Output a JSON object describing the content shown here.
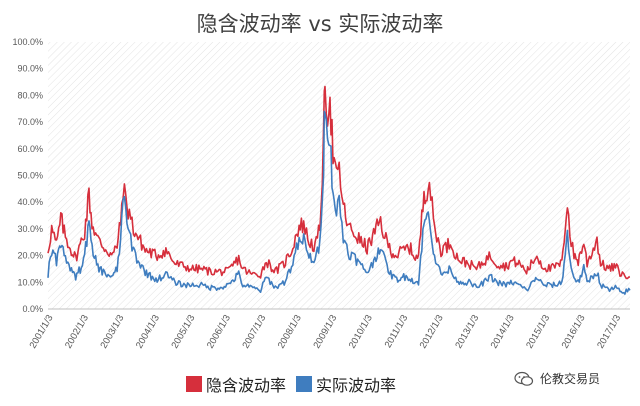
{
  "chart_data": {
    "type": "line",
    "title": "隐含波动率 vs 实际波动率",
    "xlabel": "",
    "ylabel": "",
    "ylim": [
      0,
      1.0
    ],
    "grid": "hatched background",
    "legend_position": "bottom",
    "y_ticks": [
      "0.0%",
      "10.0%",
      "20.0%",
      "30.0%",
      "40.0%",
      "50.0%",
      "60.0%",
      "70.0%",
      "80.0%",
      "90.0%",
      "100.0%"
    ],
    "x_ticks": [
      "2001/1/3",
      "2002/1/3",
      "2003/1/3",
      "2004/1/3",
      "2005/1/3",
      "2006/1/3",
      "2007/1/3",
      "2008/1/3",
      "2009/1/3",
      "2010/1/3",
      "2011/1/3",
      "2012/1/3",
      "2013/1/3",
      "2014/1/3",
      "2015/1/3",
      "2016/1/3",
      "2017/1/3"
    ],
    "x_range": [
      "2001-01-03",
      "2017-05-31"
    ],
    "series": [
      {
        "name": "隐含波动率",
        "color": "#d62f3c",
        "points": [
          [
            "2001-01-03",
            0.22
          ],
          [
            "2001-02-10",
            0.3
          ],
          [
            "2001-04-01",
            0.24
          ],
          [
            "2001-05-15",
            0.34
          ],
          [
            "2001-07-01",
            0.27
          ],
          [
            "2001-09-01",
            0.22
          ],
          [
            "2001-10-15",
            0.19
          ],
          [
            "2001-12-01",
            0.24
          ],
          [
            "2002-01-15",
            0.29
          ],
          [
            "2002-03-01",
            0.43
          ],
          [
            "2002-04-01",
            0.32
          ],
          [
            "2002-06-01",
            0.26
          ],
          [
            "2002-07-15",
            0.24
          ],
          [
            "2002-09-01",
            0.22
          ],
          [
            "2002-11-01",
            0.2
          ],
          [
            "2002-12-15",
            0.24
          ],
          [
            "2003-01-20",
            0.32
          ],
          [
            "2003-02-15",
            0.46
          ],
          [
            "2003-03-15",
            0.4
          ],
          [
            "2003-04-20",
            0.36
          ],
          [
            "2003-06-01",
            0.3
          ],
          [
            "2003-08-01",
            0.26
          ],
          [
            "2003-10-01",
            0.22
          ],
          [
            "2003-12-01",
            0.21
          ],
          [
            "2004-02-01",
            0.2
          ],
          [
            "2004-05-01",
            0.22
          ],
          [
            "2004-08-01",
            0.17
          ],
          [
            "2004-11-01",
            0.16
          ],
          [
            "2005-02-01",
            0.15
          ],
          [
            "2005-05-01",
            0.15
          ],
          [
            "2005-08-01",
            0.14
          ],
          [
            "2005-11-01",
            0.14
          ],
          [
            "2006-02-01",
            0.14
          ],
          [
            "2006-05-20",
            0.19
          ],
          [
            "2006-07-01",
            0.15
          ],
          [
            "2006-10-01",
            0.13
          ],
          [
            "2007-01-01",
            0.13
          ],
          [
            "2007-03-01",
            0.18
          ],
          [
            "2007-06-01",
            0.14
          ],
          [
            "2007-09-01",
            0.17
          ],
          [
            "2007-11-15",
            0.22
          ],
          [
            "2008-01-20",
            0.3
          ],
          [
            "2008-03-20",
            0.32
          ],
          [
            "2008-05-01",
            0.26
          ],
          [
            "2008-07-15",
            0.23
          ],
          [
            "2008-09-01",
            0.3
          ],
          [
            "2008-10-10",
            0.62
          ],
          [
            "2008-10-25",
            0.86
          ],
          [
            "2008-11-20",
            0.75
          ],
          [
            "2008-12-15",
            0.8
          ],
          [
            "2009-01-15",
            0.58
          ],
          [
            "2009-02-20",
            0.48
          ],
          [
            "2009-03-20",
            0.52
          ],
          [
            "2009-05-01",
            0.38
          ],
          [
            "2009-07-01",
            0.3
          ],
          [
            "2009-09-01",
            0.28
          ],
          [
            "2009-11-01",
            0.25
          ],
          [
            "2010-01-01",
            0.23
          ],
          [
            "2010-02-15",
            0.26
          ],
          [
            "2010-05-20",
            0.33
          ],
          [
            "2010-07-01",
            0.27
          ],
          [
            "2010-09-01",
            0.22
          ],
          [
            "2010-11-01",
            0.2
          ],
          [
            "2011-01-01",
            0.22
          ],
          [
            "2011-03-15",
            0.23
          ],
          [
            "2011-05-01",
            0.2
          ],
          [
            "2011-06-15",
            0.19
          ],
          [
            "2011-08-10",
            0.44
          ],
          [
            "2011-09-10",
            0.45
          ],
          [
            "2011-10-05",
            0.48
          ],
          [
            "2011-11-15",
            0.33
          ],
          [
            "2011-12-20",
            0.27
          ],
          [
            "2012-02-01",
            0.22
          ],
          [
            "2012-05-20",
            0.25
          ],
          [
            "2012-07-01",
            0.2
          ],
          [
            "2012-09-01",
            0.18
          ],
          [
            "2012-11-15",
            0.17
          ],
          [
            "2013-02-01",
            0.15
          ],
          [
            "2013-04-20",
            0.18
          ],
          [
            "2013-06-25",
            0.2
          ],
          [
            "2013-09-01",
            0.17
          ],
          [
            "2013-12-01",
            0.16
          ],
          [
            "2014-02-01",
            0.18
          ],
          [
            "2014-04-15",
            0.17
          ],
          [
            "2014-07-01",
            0.14
          ],
          [
            "2014-10-15",
            0.2
          ],
          [
            "2014-12-15",
            0.16
          ],
          [
            "2015-03-01",
            0.15
          ],
          [
            "2015-05-01",
            0.16
          ],
          [
            "2015-06-30",
            0.17
          ],
          [
            "2015-08-25",
            0.41
          ],
          [
            "2015-09-20",
            0.28
          ],
          [
            "2015-11-01",
            0.2
          ],
          [
            "2015-12-15",
            0.18
          ],
          [
            "2016-02-10",
            0.25
          ],
          [
            "2016-03-15",
            0.17
          ],
          [
            "2016-06-25",
            0.26
          ],
          [
            "2016-08-01",
            0.17
          ],
          [
            "2016-11-01",
            0.15
          ],
          [
            "2017-01-01",
            0.16
          ],
          [
            "2017-03-01",
            0.13
          ],
          [
            "2017-05-31",
            0.12
          ]
        ]
      },
      {
        "name": "实际波动率",
        "color": "#3f7dbf",
        "points": [
          [
            "2001-01-03",
            0.13
          ],
          [
            "2001-02-10",
            0.22
          ],
          [
            "2001-04-01",
            0.18
          ],
          [
            "2001-05-15",
            0.24
          ],
          [
            "2001-07-01",
            0.19
          ],
          [
            "2001-09-01",
            0.14
          ],
          [
            "2001-10-15",
            0.12
          ],
          [
            "2001-12-01",
            0.15
          ],
          [
            "2002-01-15",
            0.2
          ],
          [
            "2002-03-01",
            0.32
          ],
          [
            "2002-04-01",
            0.22
          ],
          [
            "2002-06-01",
            0.16
          ],
          [
            "2002-07-15",
            0.14
          ],
          [
            "2002-09-01",
            0.13
          ],
          [
            "2002-11-01",
            0.12
          ],
          [
            "2002-12-15",
            0.15
          ],
          [
            "2003-01-20",
            0.25
          ],
          [
            "2003-02-15",
            0.45
          ],
          [
            "2003-03-15",
            0.34
          ],
          [
            "2003-04-20",
            0.28
          ],
          [
            "2003-06-01",
            0.22
          ],
          [
            "2003-08-01",
            0.17
          ],
          [
            "2003-10-01",
            0.14
          ],
          [
            "2003-12-01",
            0.12
          ],
          [
            "2004-02-01",
            0.11
          ],
          [
            "2004-05-01",
            0.13
          ],
          [
            "2004-08-01",
            0.1
          ],
          [
            "2004-11-01",
            0.09
          ],
          [
            "2005-02-01",
            0.09
          ],
          [
            "2005-05-01",
            0.09
          ],
          [
            "2005-08-01",
            0.08
          ],
          [
            "2005-11-01",
            0.08
          ],
          [
            "2006-02-01",
            0.09
          ],
          [
            "2006-05-20",
            0.13
          ],
          [
            "2006-07-01",
            0.09
          ],
          [
            "2006-10-01",
            0.08
          ],
          [
            "2007-01-01",
            0.07
          ],
          [
            "2007-03-01",
            0.12
          ],
          [
            "2007-06-01",
            0.08
          ],
          [
            "2007-09-01",
            0.1
          ],
          [
            "2007-11-15",
            0.16
          ],
          [
            "2008-01-20",
            0.24
          ],
          [
            "2008-03-20",
            0.26
          ],
          [
            "2008-05-01",
            0.2
          ],
          [
            "2008-07-15",
            0.18
          ],
          [
            "2008-09-01",
            0.24
          ],
          [
            "2008-10-10",
            0.55
          ],
          [
            "2008-10-25",
            0.82
          ],
          [
            "2008-11-20",
            0.7
          ],
          [
            "2008-12-15",
            0.62
          ],
          [
            "2009-01-15",
            0.45
          ],
          [
            "2009-02-20",
            0.36
          ],
          [
            "2009-03-20",
            0.4
          ],
          [
            "2009-05-01",
            0.27
          ],
          [
            "2009-07-01",
            0.21
          ],
          [
            "2009-09-01",
            0.19
          ],
          [
            "2009-11-01",
            0.16
          ],
          [
            "2010-01-01",
            0.14
          ],
          [
            "2010-02-15",
            0.16
          ],
          [
            "2010-05-20",
            0.24
          ],
          [
            "2010-07-01",
            0.18
          ],
          [
            "2010-09-01",
            0.13
          ],
          [
            "2010-11-01",
            0.11
          ],
          [
            "2011-01-01",
            0.12
          ],
          [
            "2011-03-15",
            0.12
          ],
          [
            "2011-05-01",
            0.1
          ],
          [
            "2011-06-15",
            0.1
          ],
          [
            "2011-08-10",
            0.32
          ],
          [
            "2011-09-10",
            0.34
          ],
          [
            "2011-10-05",
            0.36
          ],
          [
            "2011-11-15",
            0.22
          ],
          [
            "2011-12-20",
            0.17
          ],
          [
            "2012-02-01",
            0.13
          ],
          [
            "2012-05-20",
            0.15
          ],
          [
            "2012-07-01",
            0.11
          ],
          [
            "2012-09-01",
            0.1
          ],
          [
            "2012-11-15",
            0.1
          ],
          [
            "2013-02-01",
            0.08
          ],
          [
            "2013-04-20",
            0.1
          ],
          [
            "2013-06-25",
            0.12
          ],
          [
            "2013-09-01",
            0.1
          ],
          [
            "2013-12-01",
            0.09
          ],
          [
            "2014-02-01",
            0.1
          ],
          [
            "2014-04-15",
            0.09
          ],
          [
            "2014-07-01",
            0.07
          ],
          [
            "2014-10-15",
            0.12
          ],
          [
            "2014-12-15",
            0.09
          ],
          [
            "2015-03-01",
            0.09
          ],
          [
            "2015-05-01",
            0.09
          ],
          [
            "2015-06-30",
            0.1
          ],
          [
            "2015-08-25",
            0.28
          ],
          [
            "2015-09-20",
            0.18
          ],
          [
            "2015-11-01",
            0.12
          ],
          [
            "2015-12-15",
            0.1
          ],
          [
            "2016-02-10",
            0.15
          ],
          [
            "2016-03-15",
            0.1
          ],
          [
            "2016-06-25",
            0.14
          ],
          [
            "2016-08-01",
            0.09
          ],
          [
            "2016-11-01",
            0.07
          ],
          [
            "2017-01-01",
            0.08
          ],
          [
            "2017-03-01",
            0.06
          ],
          [
            "2017-05-31",
            0.07
          ]
        ]
      }
    ]
  },
  "legend": {
    "implied_label": "隐含波动率",
    "realized_label": "实际波动率"
  },
  "watermark": {
    "text": "伦教交易员",
    "icon": "wechat-icon"
  }
}
